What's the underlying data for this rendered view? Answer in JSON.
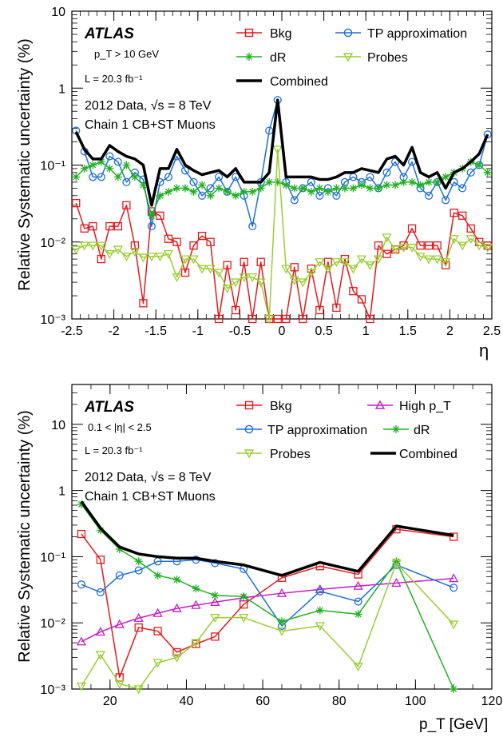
{
  "chart_data": [
    {
      "type": "line",
      "ylabel": "Relative Systematic uncertainty (%)",
      "xlabel": "η",
      "xlim": [
        -2.5,
        2.5
      ],
      "ylim": [
        0.001,
        10
      ],
      "yscale": "log",
      "xticks": [
        "-2.5",
        "-2",
        "-1.5",
        "-1",
        "-0.5",
        "0",
        "0.5",
        "1",
        "1.5",
        "2",
        "2.5"
      ],
      "yticks": [
        "10⁻³",
        "10⁻²",
        "10⁻¹",
        "1",
        "10"
      ],
      "labels": {
        "atlas": "ATLAS",
        "cut": "p_T > 10 GeV",
        "lumi": "L = 20.3 fb⁻¹",
        "data": "2012 Data, √s = 8 TeV",
        "chain": "Chain 1 CB+ST Muons"
      },
      "legend": [
        "Bkg",
        "TP approximation",
        "dR",
        "Probes",
        "Combined"
      ],
      "x": [
        -2.45,
        -2.35,
        -2.25,
        -2.15,
        -2.05,
        -1.95,
        -1.85,
        -1.75,
        -1.65,
        -1.55,
        -1.45,
        -1.35,
        -1.25,
        -1.15,
        -1.05,
        -0.95,
        -0.85,
        -0.75,
        -0.65,
        -0.55,
        -0.45,
        -0.35,
        -0.25,
        -0.15,
        -0.05,
        0.05,
        0.15,
        0.25,
        0.35,
        0.45,
        0.55,
        0.65,
        0.75,
        0.85,
        0.95,
        1.05,
        1.15,
        1.25,
        1.35,
        1.45,
        1.55,
        1.65,
        1.75,
        1.85,
        1.95,
        2.05,
        2.15,
        2.25,
        2.35,
        2.45
      ],
      "series": [
        {
          "name": "Bkg",
          "color": "#e31a1c",
          "marker": "square",
          "values": [
            0.032,
            0.015,
            0.016,
            0.006,
            0.016,
            0.016,
            0.03,
            0.009,
            0.0016,
            0.025,
            0.022,
            0.011,
            0.01,
            0.004,
            0.009,
            0.012,
            0.01,
            0.001,
            0.005,
            0.0013,
            0.0055,
            0.001,
            0.0055,
            0.001,
            0.001,
            0.001,
            0.0047,
            0.001,
            0.0045,
            0.0013,
            0.0055,
            0.0014,
            0.006,
            0.0023,
            0.0018,
            0.001,
            0.009,
            0.007,
            0.008,
            0.009,
            0.015,
            0.009,
            0.009,
            0.009,
            0.005,
            0.024,
            0.022,
            0.015,
            0.01,
            0.009
          ]
        },
        {
          "name": "TP approximation",
          "color": "#1f6fd6",
          "marker": "circle",
          "values": [
            0.28,
            0.15,
            0.07,
            0.07,
            0.13,
            0.11,
            0.06,
            0.08,
            0.065,
            0.016,
            0.06,
            0.07,
            0.13,
            0.085,
            0.06,
            0.04,
            0.05,
            0.07,
            0.045,
            0.07,
            0.04,
            0.016,
            0.06,
            0.28,
            0.7,
            0.06,
            0.035,
            0.05,
            0.06,
            0.04,
            0.05,
            0.04,
            0.06,
            0.07,
            0.06,
            0.07,
            0.05,
            0.08,
            0.11,
            0.07,
            0.11,
            0.05,
            0.04,
            0.06,
            0.035,
            0.06,
            0.05,
            0.08,
            0.1,
            0.25
          ]
        },
        {
          "name": "dR",
          "color": "#22b022",
          "marker": "star",
          "values": [
            0.07,
            0.09,
            0.1,
            0.11,
            0.09,
            0.07,
            0.1,
            0.07,
            0.055,
            0.022,
            0.04,
            0.045,
            0.05,
            0.05,
            0.045,
            0.055,
            0.04,
            0.05,
            0.045,
            0.04,
            0.045,
            0.045,
            0.05,
            0.06,
            0.06,
            0.055,
            0.05,
            0.05,
            0.045,
            0.05,
            0.045,
            0.05,
            0.05,
            0.05,
            0.055,
            0.05,
            0.05,
            0.055,
            0.055,
            0.06,
            0.06,
            0.055,
            0.06,
            0.06,
            0.07,
            0.08,
            0.09,
            0.11,
            0.1,
            0.08
          ]
        },
        {
          "name": "Probes",
          "color": "#9acd32",
          "marker": "triangle-down",
          "values": [
            0.008,
            0.009,
            0.009,
            0.009,
            0.007,
            0.008,
            0.0065,
            0.0075,
            0.0063,
            0.0065,
            0.0065,
            0.007,
            0.0035,
            0.006,
            0.006,
            0.0045,
            0.0045,
            0.004,
            0.0025,
            0.003,
            0.0035,
            0.0035,
            0.003,
            0.001,
            0.16,
            0.0045,
            0.0032,
            0.003,
            0.004,
            0.0055,
            0.0045,
            0.0055,
            0.0055,
            0.0045,
            0.006,
            0.005,
            0.006,
            0.0115,
            0.008,
            0.0085,
            0.0085,
            0.0065,
            0.006,
            0.006,
            0.0055,
            0.011,
            0.009,
            0.011,
            0.009,
            0.0085
          ]
        },
        {
          "name": "Combined",
          "color": "#000000",
          "marker": "none",
          "values": [
            0.27,
            0.16,
            0.12,
            0.12,
            0.18,
            0.15,
            0.13,
            0.12,
            0.1,
            0.03,
            0.09,
            0.09,
            0.16,
            0.1,
            0.085,
            0.075,
            0.08,
            0.085,
            0.07,
            0.09,
            0.06,
            0.06,
            0.06,
            0.08,
            0.7,
            0.07,
            0.07,
            0.07,
            0.07,
            0.065,
            0.065,
            0.07,
            0.08,
            0.08,
            0.09,
            0.085,
            0.08,
            0.12,
            0.13,
            0.1,
            0.17,
            0.08,
            0.07,
            0.08,
            0.05,
            0.08,
            0.09,
            0.11,
            0.14,
            0.25
          ]
        }
      ]
    },
    {
      "type": "line",
      "ylabel": "Relative Systematic uncertainty (%)",
      "xlabel": "p_T [GeV]",
      "xlim": [
        10,
        120
      ],
      "ylim": [
        0.001,
        40
      ],
      "yscale": "log",
      "xticks": [
        "20",
        "40",
        "60",
        "80",
        "100",
        "120"
      ],
      "yticks": [
        "10⁻³",
        "10⁻²",
        "10⁻¹",
        "1",
        "10"
      ],
      "labels": {
        "atlas": "ATLAS",
        "cut": "0.1 < |η| < 2.5",
        "lumi": "L = 20.3 fb⁻¹",
        "data": "2012 Data, √s = 8 TeV",
        "chain": "Chain 1 CB+ST Muons"
      },
      "legend": [
        "Bkg",
        "High p_T",
        "TP approximation",
        "dR",
        "Probes",
        "Combined"
      ],
      "x": [
        12.5,
        17.5,
        22.5,
        27.5,
        32.5,
        37.5,
        42.5,
        47.5,
        55,
        65,
        75,
        85,
        95,
        110
      ],
      "series": [
        {
          "name": "Bkg",
          "color": "#e31a1c",
          "marker": "square",
          "values": [
            0.22,
            0.09,
            0.0015,
            0.0085,
            0.0075,
            0.0036,
            0.0048,
            0.0062,
            0.019,
            0.048,
            0.072,
            0.054,
            0.26,
            0.2
          ]
        },
        {
          "name": "High p_T",
          "color": "#c31ec3",
          "marker": "triangle-up",
          "values": [
            0.0052,
            0.0073,
            0.0095,
            0.0118,
            0.014,
            0.0165,
            0.0185,
            0.0205,
            0.024,
            0.028,
            0.032,
            0.036,
            0.04,
            0.047
          ]
        },
        {
          "name": "TP approximation",
          "color": "#1f6fd6",
          "marker": "circle",
          "values": [
            0.038,
            0.029,
            0.052,
            0.062,
            0.085,
            0.085,
            0.09,
            0.08,
            0.065,
            0.009,
            0.03,
            0.021,
            0.075,
            0.034
          ]
        },
        {
          "name": "dR",
          "color": "#22b022",
          "marker": "star",
          "values": [
            0.62,
            0.25,
            0.13,
            0.085,
            0.052,
            0.045,
            0.033,
            0.026,
            0.025,
            0.0105,
            0.0155,
            0.0135,
            0.085,
            0.001
          ]
        },
        {
          "name": "Probes",
          "color": "#9acd32",
          "marker": "triangle-down",
          "values": [
            0.0011,
            0.0033,
            0.0012,
            0.001,
            0.0025,
            0.003,
            0.005,
            0.012,
            0.012,
            0.0075,
            0.009,
            0.0022,
            0.08,
            0.0095
          ]
        },
        {
          "name": "Combined",
          "color": "#000000",
          "marker": "none",
          "values": [
            0.68,
            0.27,
            0.14,
            0.11,
            0.1,
            0.095,
            0.095,
            0.085,
            0.075,
            0.052,
            0.082,
            0.06,
            0.29,
            0.21
          ]
        }
      ]
    }
  ]
}
